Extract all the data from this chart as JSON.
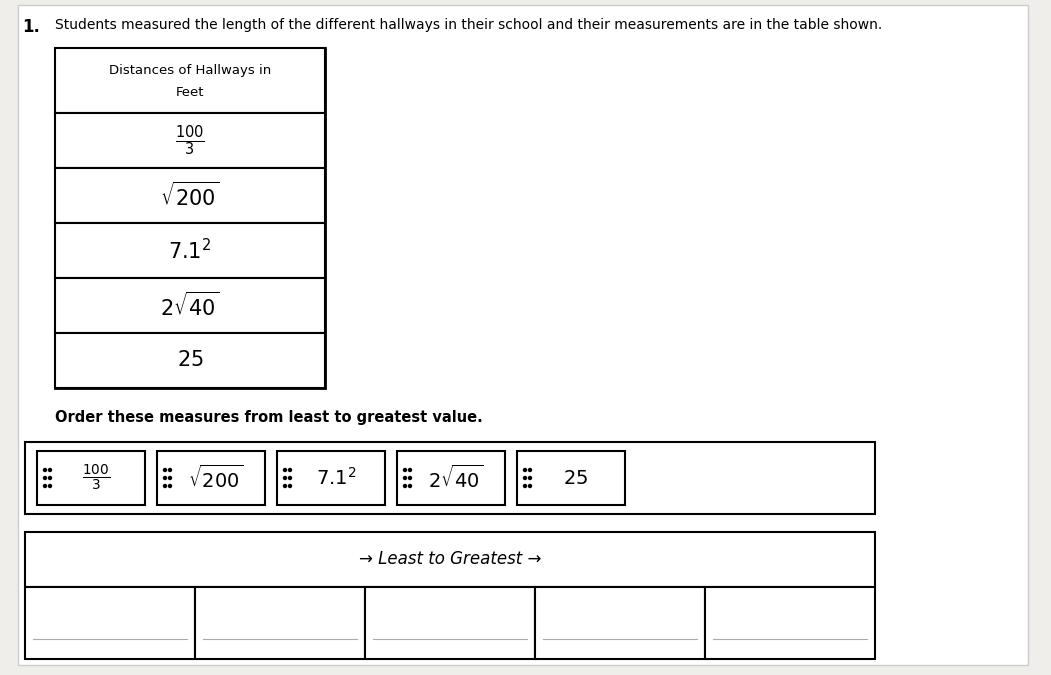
{
  "title": "Students measured the length of the different hallways in their school and their measurements are in the table shown.",
  "problem_number": "1.",
  "table_header_line1": "Distances of Hallways in",
  "table_header_line2": "Feet",
  "row_labels": [
    "$\\frac{100}{3}$",
    "$\\sqrt{200}$",
    "$7.1^2$",
    "$2\\sqrt{40}$",
    "$25$"
  ],
  "order_text": "Order these measures from least to greatest value.",
  "drag_labels": [
    "$\\frac{100}{3}$",
    "$\\sqrt{200}$",
    "$7.1^2$",
    "$2\\sqrt{40}$",
    "$25$"
  ],
  "arrow_text": "→ Least to Greatest →",
  "bg_color": "#f0eeeb",
  "table_bg_white": "#ffffff",
  "table_bg_gray": "#e8e8e8",
  "drag_container_bg": "#ffffff",
  "ltg_bg": "#ffffff",
  "ans_bg": "#ffffff"
}
